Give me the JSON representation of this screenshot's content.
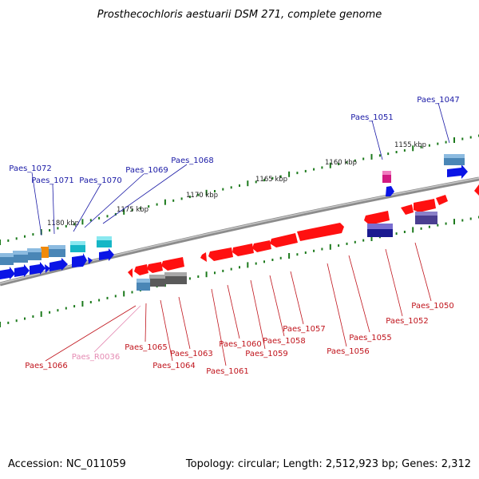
{
  "title": "Prosthecochloris aestuarii DSM 271, complete genome",
  "footer": {
    "accession": "Accession: NC_011059",
    "summary": "Topology: circular; Length: 2,512,923 bp; Genes: 2,312"
  },
  "colors": {
    "backbone": "#8c8c8c",
    "forward_cds": "#0a14e6",
    "reverse_cds": "#ff1010",
    "top_label": "#1a1aa6",
    "bottom_label": "#c0141c",
    "rna_label": "#e58bb3",
    "tick": "#1c7a1c"
  },
  "kbp_markers": [
    "1155 kbp",
    "1160 kbp",
    "1165 kbp",
    "1170 kbp",
    "1175 kbp",
    "1180 kbp"
  ],
  "top_labels": [
    "Paes_1047",
    "Paes_1051",
    "Paes_1068",
    "Paes_1069",
    "Paes_1070",
    "Paes_1071",
    "Paes_1072"
  ],
  "bottom_labels": [
    "Paes_1050",
    "Paes_1052",
    "Paes_1055",
    "Paes_1056",
    "Paes_1057",
    "Paes_1058",
    "Paes_1059",
    "Paes_1060",
    "Paes_1061",
    "Paes_1063",
    "Paes_1064",
    "Paes_1065",
    "Paes_1066"
  ],
  "rna_labels": [
    "Paes_R0036"
  ]
}
